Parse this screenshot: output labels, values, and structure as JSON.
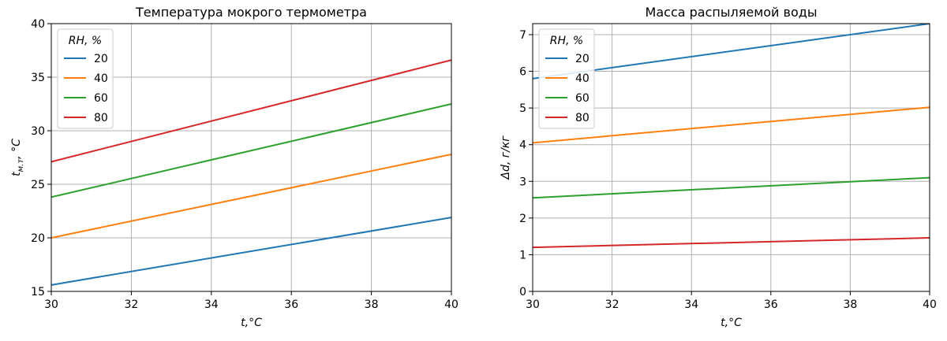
{
  "chart_data": [
    {
      "type": "line",
      "title": "Температура мокрого термометра",
      "xlabel": "t,°C",
      "ylabel": "t",
      "ylabel_sub": "м.т",
      "ylabel_suffix": ", °C",
      "xlim": [
        30,
        40
      ],
      "ylim": [
        15,
        40
      ],
      "xticks": [
        30,
        32,
        34,
        36,
        38,
        40
      ],
      "yticks": [
        15,
        20,
        25,
        30,
        35,
        40
      ],
      "grid": true,
      "legend_title": "RH, %",
      "legend_position": "top-left",
      "x": [
        30,
        40
      ],
      "series": [
        {
          "name": "20",
          "color": "#1f77b4",
          "values": [
            15.6,
            21.9
          ]
        },
        {
          "name": "40",
          "color": "#ff7f0e",
          "values": [
            20.0,
            27.8
          ]
        },
        {
          "name": "60",
          "color": "#2ca02c",
          "values": [
            23.8,
            32.5
          ]
        },
        {
          "name": "80",
          "color": "#d62728",
          "values": [
            27.1,
            36.6
          ]
        }
      ]
    },
    {
      "type": "line",
      "title": "Масса распыляемой воды",
      "xlabel": "t,°C",
      "ylabel": "Δd,  г/кг",
      "xlim": [
        30,
        40
      ],
      "ylim": [
        0,
        7.3
      ],
      "xticks": [
        30,
        32,
        34,
        36,
        38,
        40
      ],
      "yticks": [
        0,
        1,
        2,
        3,
        4,
        5,
        6,
        7
      ],
      "grid": true,
      "legend_title": "RH, %",
      "legend_position": "top-left",
      "x": [
        30,
        40
      ],
      "series": [
        {
          "name": "20",
          "color": "#1f77b4",
          "values": [
            5.8,
            7.3
          ]
        },
        {
          "name": "40",
          "color": "#ff7f0e",
          "values": [
            4.05,
            5.02
          ]
        },
        {
          "name": "60",
          "color": "#2ca02c",
          "values": [
            2.55,
            3.1
          ]
        },
        {
          "name": "80",
          "color": "#d62728",
          "values": [
            1.2,
            1.46
          ]
        }
      ]
    }
  ]
}
